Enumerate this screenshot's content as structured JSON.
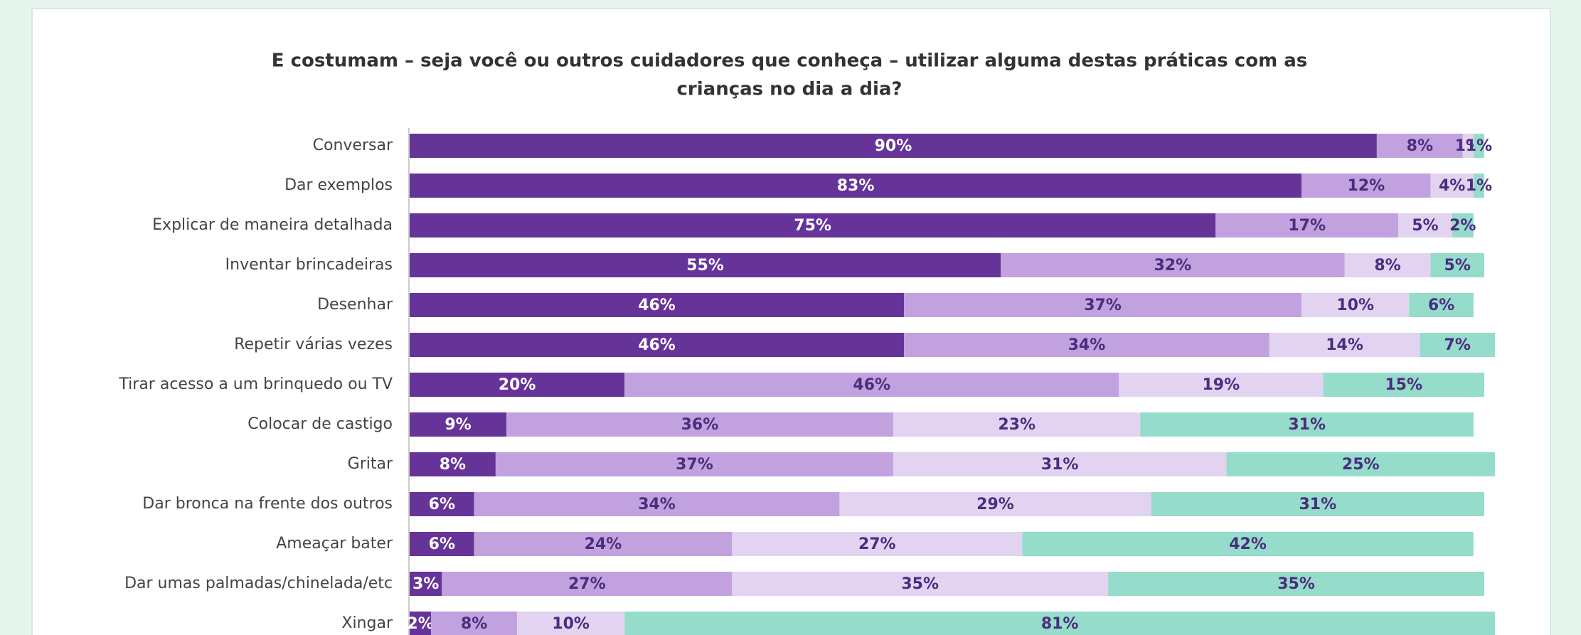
{
  "chart_data": {
    "type": "stacked-bar-horizontal",
    "title": [
      "E costumam – seja você ou outros cuidadores que conheça – utilizar alguma destas práticas com as",
      "crianças no dia a dia?"
    ],
    "categories": [
      "Conversar",
      "Dar exemplos",
      "Explicar de maneira detalhada",
      "Inventar brincadeiras",
      "Desenhar",
      "Repetir várias vezes",
      "Tirar acesso a um brinquedo ou TV",
      "Colocar de castigo",
      "Gritar",
      "Dar bronca na frente dos outros",
      "Ameaçar bater",
      "Dar umas palmadas/chinelada/etc",
      "Xingar"
    ],
    "series": [
      {
        "color": "#663399",
        "values": [
          90,
          83,
          75,
          55,
          46,
          46,
          20,
          9,
          8,
          6,
          6,
          3,
          2
        ],
        "value_labels": [
          "90%",
          "83%",
          "75%",
          "55%",
          "46%",
          "46%",
          "20%",
          "9%",
          "8%",
          "6%",
          "6%",
          "3%",
          "2%"
        ]
      },
      {
        "color": "#c1a2de",
        "values": [
          8,
          12,
          17,
          32,
          37,
          34,
          46,
          36,
          37,
          34,
          24,
          27,
          8
        ],
        "value_labels": [
          "8%",
          "12%",
          "17%",
          "32%",
          "37%",
          "34%",
          "46%",
          "36%",
          "37%",
          "34%",
          "24%",
          "27%",
          "8%"
        ]
      },
      {
        "color": "#e2d3f0",
        "values": [
          1,
          4,
          5,
          8,
          10,
          14,
          19,
          23,
          31,
          29,
          27,
          35,
          10
        ],
        "value_labels": [
          "1%",
          "4%",
          "5%",
          "8%",
          "10%",
          "14%",
          "19%",
          "23%",
          "31%",
          "29%",
          "27%",
          "35%",
          "10%"
        ]
      },
      {
        "color": "#95dccb",
        "values": [
          1,
          1,
          2,
          5,
          6,
          7,
          15,
          31,
          25,
          31,
          42,
          35,
          81
        ],
        "value_labels": [
          "1%",
          "1%",
          "2%",
          "5%",
          "6%",
          "7%",
          "15%",
          "31%",
          "25%",
          "31%",
          "42%",
          "35%",
          "81%"
        ]
      }
    ]
  }
}
